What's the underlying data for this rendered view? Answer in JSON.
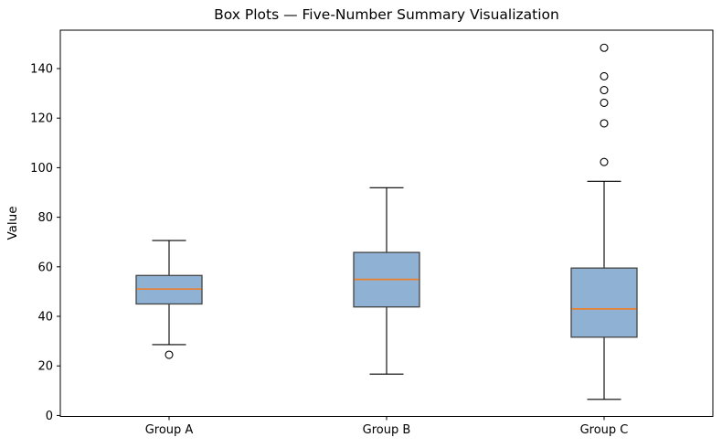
{
  "chart_data": {
    "type": "boxplot",
    "title": "Box Plots — Five-Number Summary Visualization",
    "ylabel": "Value",
    "xlabel": "",
    "categories": [
      "Group A",
      "Group B",
      "Group C"
    ],
    "yticks": [
      0,
      20,
      40,
      60,
      80,
      100,
      120,
      140
    ],
    "ylim": [
      -0.4,
      155.5
    ],
    "grid": false,
    "legend": false,
    "box_width_units": 0.3,
    "colors": {
      "box_fill": "#8fb2d4",
      "box_edge": "#444444",
      "median": "#ec7f2c",
      "whisker": "#000000",
      "cap": "#000000",
      "outlier_edge": "#000000",
      "frame": "#000000",
      "text": "#000000"
    },
    "series": [
      {
        "label": "Group A",
        "whisker_low": 28.6,
        "q1": 45.0,
        "median": 51.0,
        "q3": 56.5,
        "whisker_high": 70.6,
        "outliers": [
          24.5
        ]
      },
      {
        "label": "Group B",
        "whisker_low": 16.7,
        "q1": 43.8,
        "median": 54.9,
        "q3": 65.8,
        "whisker_high": 91.9,
        "outliers": []
      },
      {
        "label": "Group C",
        "whisker_low": 6.5,
        "q1": 31.6,
        "median": 43.0,
        "q3": 59.5,
        "whisker_high": 94.5,
        "outliers": [
          148.4,
          136.9,
          131.3,
          126.2,
          117.9,
          102.3
        ]
      }
    ]
  }
}
